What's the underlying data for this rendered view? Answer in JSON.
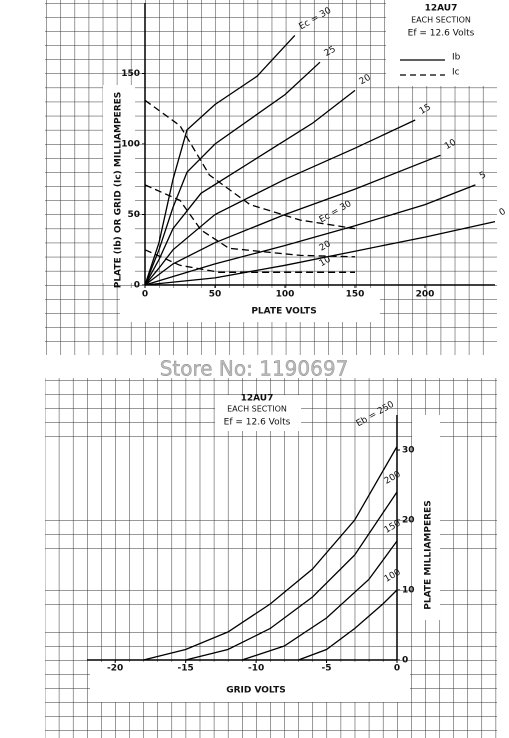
{
  "watermark": "Store No: 1190697",
  "chart_data": [
    {
      "type": "line",
      "title": "12AU7",
      "subtitle": "EACH SECTION",
      "annotation": "Ef = 12.6 Volts",
      "x_label": "PLATE VOLTS",
      "y_label": "PLATE (Ib) OR GRID (Ic) MILLIAMPERES",
      "xlim": [
        0,
        250
      ],
      "ylim": [
        0,
        200
      ],
      "xticks": [
        0,
        50,
        100,
        150,
        200
      ],
      "yticks": [
        0,
        50,
        100,
        150
      ],
      "legend": [
        {
          "label": "Ib",
          "style": "solid"
        },
        {
          "label": "Ic",
          "style": "dashed"
        }
      ],
      "series": [
        {
          "name": "Ec = 30",
          "color": "#000",
          "style": "solid",
          "x": [
            0,
            10,
            20,
            30,
            50,
            80,
            107
          ],
          "values": [
            0,
            30,
            75,
            110,
            128,
            148,
            177
          ]
        },
        {
          "name": "25",
          "color": "#000",
          "style": "solid",
          "x": [
            0,
            10,
            20,
            30,
            50,
            100,
            125
          ],
          "values": [
            0,
            25,
            55,
            80,
            100,
            135,
            158
          ]
        },
        {
          "name": "20",
          "color": "#000",
          "style": "solid",
          "x": [
            0,
            10,
            20,
            40,
            80,
            120,
            150
          ],
          "values": [
            0,
            18,
            40,
            65,
            90,
            115,
            138
          ]
        },
        {
          "name": "15",
          "color": "#000",
          "style": "solid",
          "x": [
            0,
            10,
            20,
            50,
            100,
            150,
            193
          ],
          "values": [
            0,
            12,
            25,
            50,
            75,
            97,
            117
          ]
        },
        {
          "name": "10",
          "color": "#000",
          "style": "solid",
          "x": [
            0,
            20,
            50,
            100,
            150,
            211
          ],
          "values": [
            0,
            15,
            30,
            50,
            68,
            92
          ]
        },
        {
          "name": "5",
          "color": "#000",
          "style": "solid",
          "x": [
            0,
            50,
            100,
            150,
            200,
            236
          ],
          "values": [
            0,
            15,
            28,
            42,
            57,
            71
          ]
        },
        {
          "name": "0",
          "color": "#000",
          "style": "solid",
          "x": [
            0,
            50,
            100,
            150,
            200,
            250
          ],
          "values": [
            0,
            5,
            14,
            24,
            34,
            45
          ]
        },
        {
          "name": "Ec = 30",
          "color": "#000",
          "style": "dashed",
          "x": [
            0,
            25,
            46,
            75,
            111,
            150
          ],
          "values": [
            131,
            113,
            78,
            57,
            46,
            40
          ]
        },
        {
          "name": "20",
          "color": "#000",
          "style": "dashed",
          "x": [
            0,
            25,
            40,
            60,
            111,
            150
          ],
          "values": [
            71,
            60,
            39,
            26,
            21,
            20
          ]
        },
        {
          "name": "10",
          "color": "#000",
          "style": "dashed",
          "x": [
            0,
            25,
            53,
            96,
            150
          ],
          "values": [
            25,
            14,
            9,
            9,
            9
          ]
        }
      ]
    },
    {
      "type": "line",
      "title": "12AU7",
      "subtitle": "EACH SECTION",
      "annotation": "Ef = 12.6 Volts",
      "x_label": "GRID VOLTS",
      "y_label": "PLATE MILLIAMPERES",
      "xlim": [
        -22,
        0
      ],
      "ylim": [
        0,
        35
      ],
      "xticks": [
        -20,
        -15,
        -10,
        -5,
        0
      ],
      "yticks": [
        0,
        10,
        20,
        30
      ],
      "series": [
        {
          "name": "Eb = 250",
          "color": "#000",
          "style": "solid",
          "x": [
            -18,
            -15,
            -12,
            -9,
            -6,
            -3,
            0
          ],
          "values": [
            0,
            1.5,
            4,
            8,
            13,
            20,
            30.5
          ]
        },
        {
          "name": "200",
          "color": "#000",
          "style": "solid",
          "x": [
            -15,
            -12,
            -9,
            -6,
            -3,
            0
          ],
          "values": [
            0,
            1.5,
            4.5,
            9,
            15,
            24
          ]
        },
        {
          "name": "150",
          "color": "#000",
          "style": "solid",
          "x": [
            -11,
            -8,
            -5,
            -2,
            0
          ],
          "values": [
            0,
            2,
            6,
            11.5,
            17
          ]
        },
        {
          "name": "100",
          "color": "#000",
          "style": "solid",
          "x": [
            -7,
            -5,
            -3,
            -1,
            0
          ],
          "values": [
            0,
            1.5,
            4.5,
            8,
            10
          ]
        }
      ]
    }
  ]
}
